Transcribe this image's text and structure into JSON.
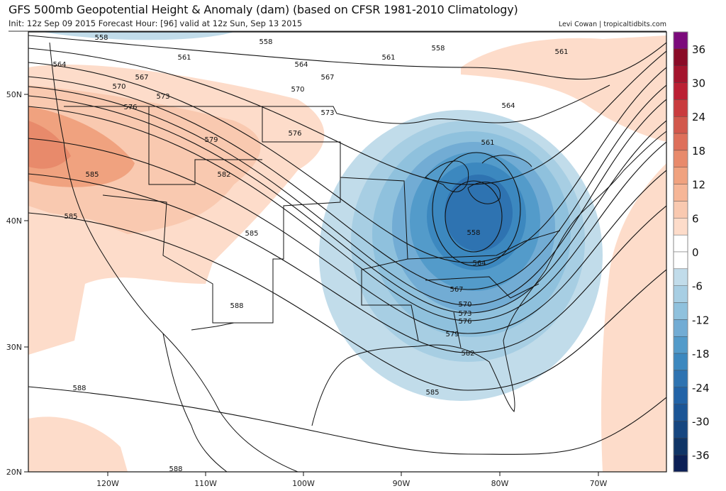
{
  "header": {
    "title": "GFS 500mb Geopotential Height & Anomaly (dam) (based on CFSR 1981-2010 Climatology)",
    "subtitle": "Init: 12z Sep 09 2015   Forecast Hour: [96]   valid at 12z Sun, Sep 13 2015",
    "credit": "Levi Cowan | tropicaltidbits.com"
  },
  "map": {
    "lat_labels": [
      "50N",
      "40N",
      "30N",
      "20N"
    ],
    "lon_labels": [
      "120W",
      "110W",
      "100W",
      "90W",
      "80W",
      "70W"
    ],
    "contour_values": [
      "558",
      "561",
      "564",
      "567",
      "570",
      "573",
      "576",
      "579",
      "582",
      "585",
      "588"
    ],
    "contour_labels": [
      "558",
      "558",
      "558",
      "558",
      "561",
      "561",
      "561",
      "561",
      "564",
      "564",
      "564",
      "564",
      "567",
      "567",
      "567",
      "570",
      "570",
      "570",
      "573",
      "573",
      "573",
      "576",
      "576",
      "576",
      "579",
      "579",
      "582",
      "582",
      "585",
      "585",
      "585",
      "585",
      "588",
      "588",
      "588"
    ]
  },
  "colorbar": {
    "labels": [
      "36",
      "30",
      "24",
      "18",
      "12",
      "6",
      "0",
      "-6",
      "-12",
      "-18",
      "-24",
      "-30",
      "-36"
    ],
    "colors": [
      "#7b0a7b",
      "#8a0b27",
      "#a4142d",
      "#bb1f33",
      "#c93b3e",
      "#d2584c",
      "#de6f5a",
      "#e88a6b",
      "#f0a27f",
      "#f6b697",
      "#f9c9b0",
      "#fddcca",
      "#ffffff",
      "#ffffff",
      "#c1dcea",
      "#a7cee3",
      "#8fc1dd",
      "#72acd4",
      "#539bca",
      "#3c88bf",
      "#2e73b1",
      "#2263a7",
      "#1b5596",
      "#164680",
      "#0f3466",
      "#0b1f55"
    ]
  }
}
